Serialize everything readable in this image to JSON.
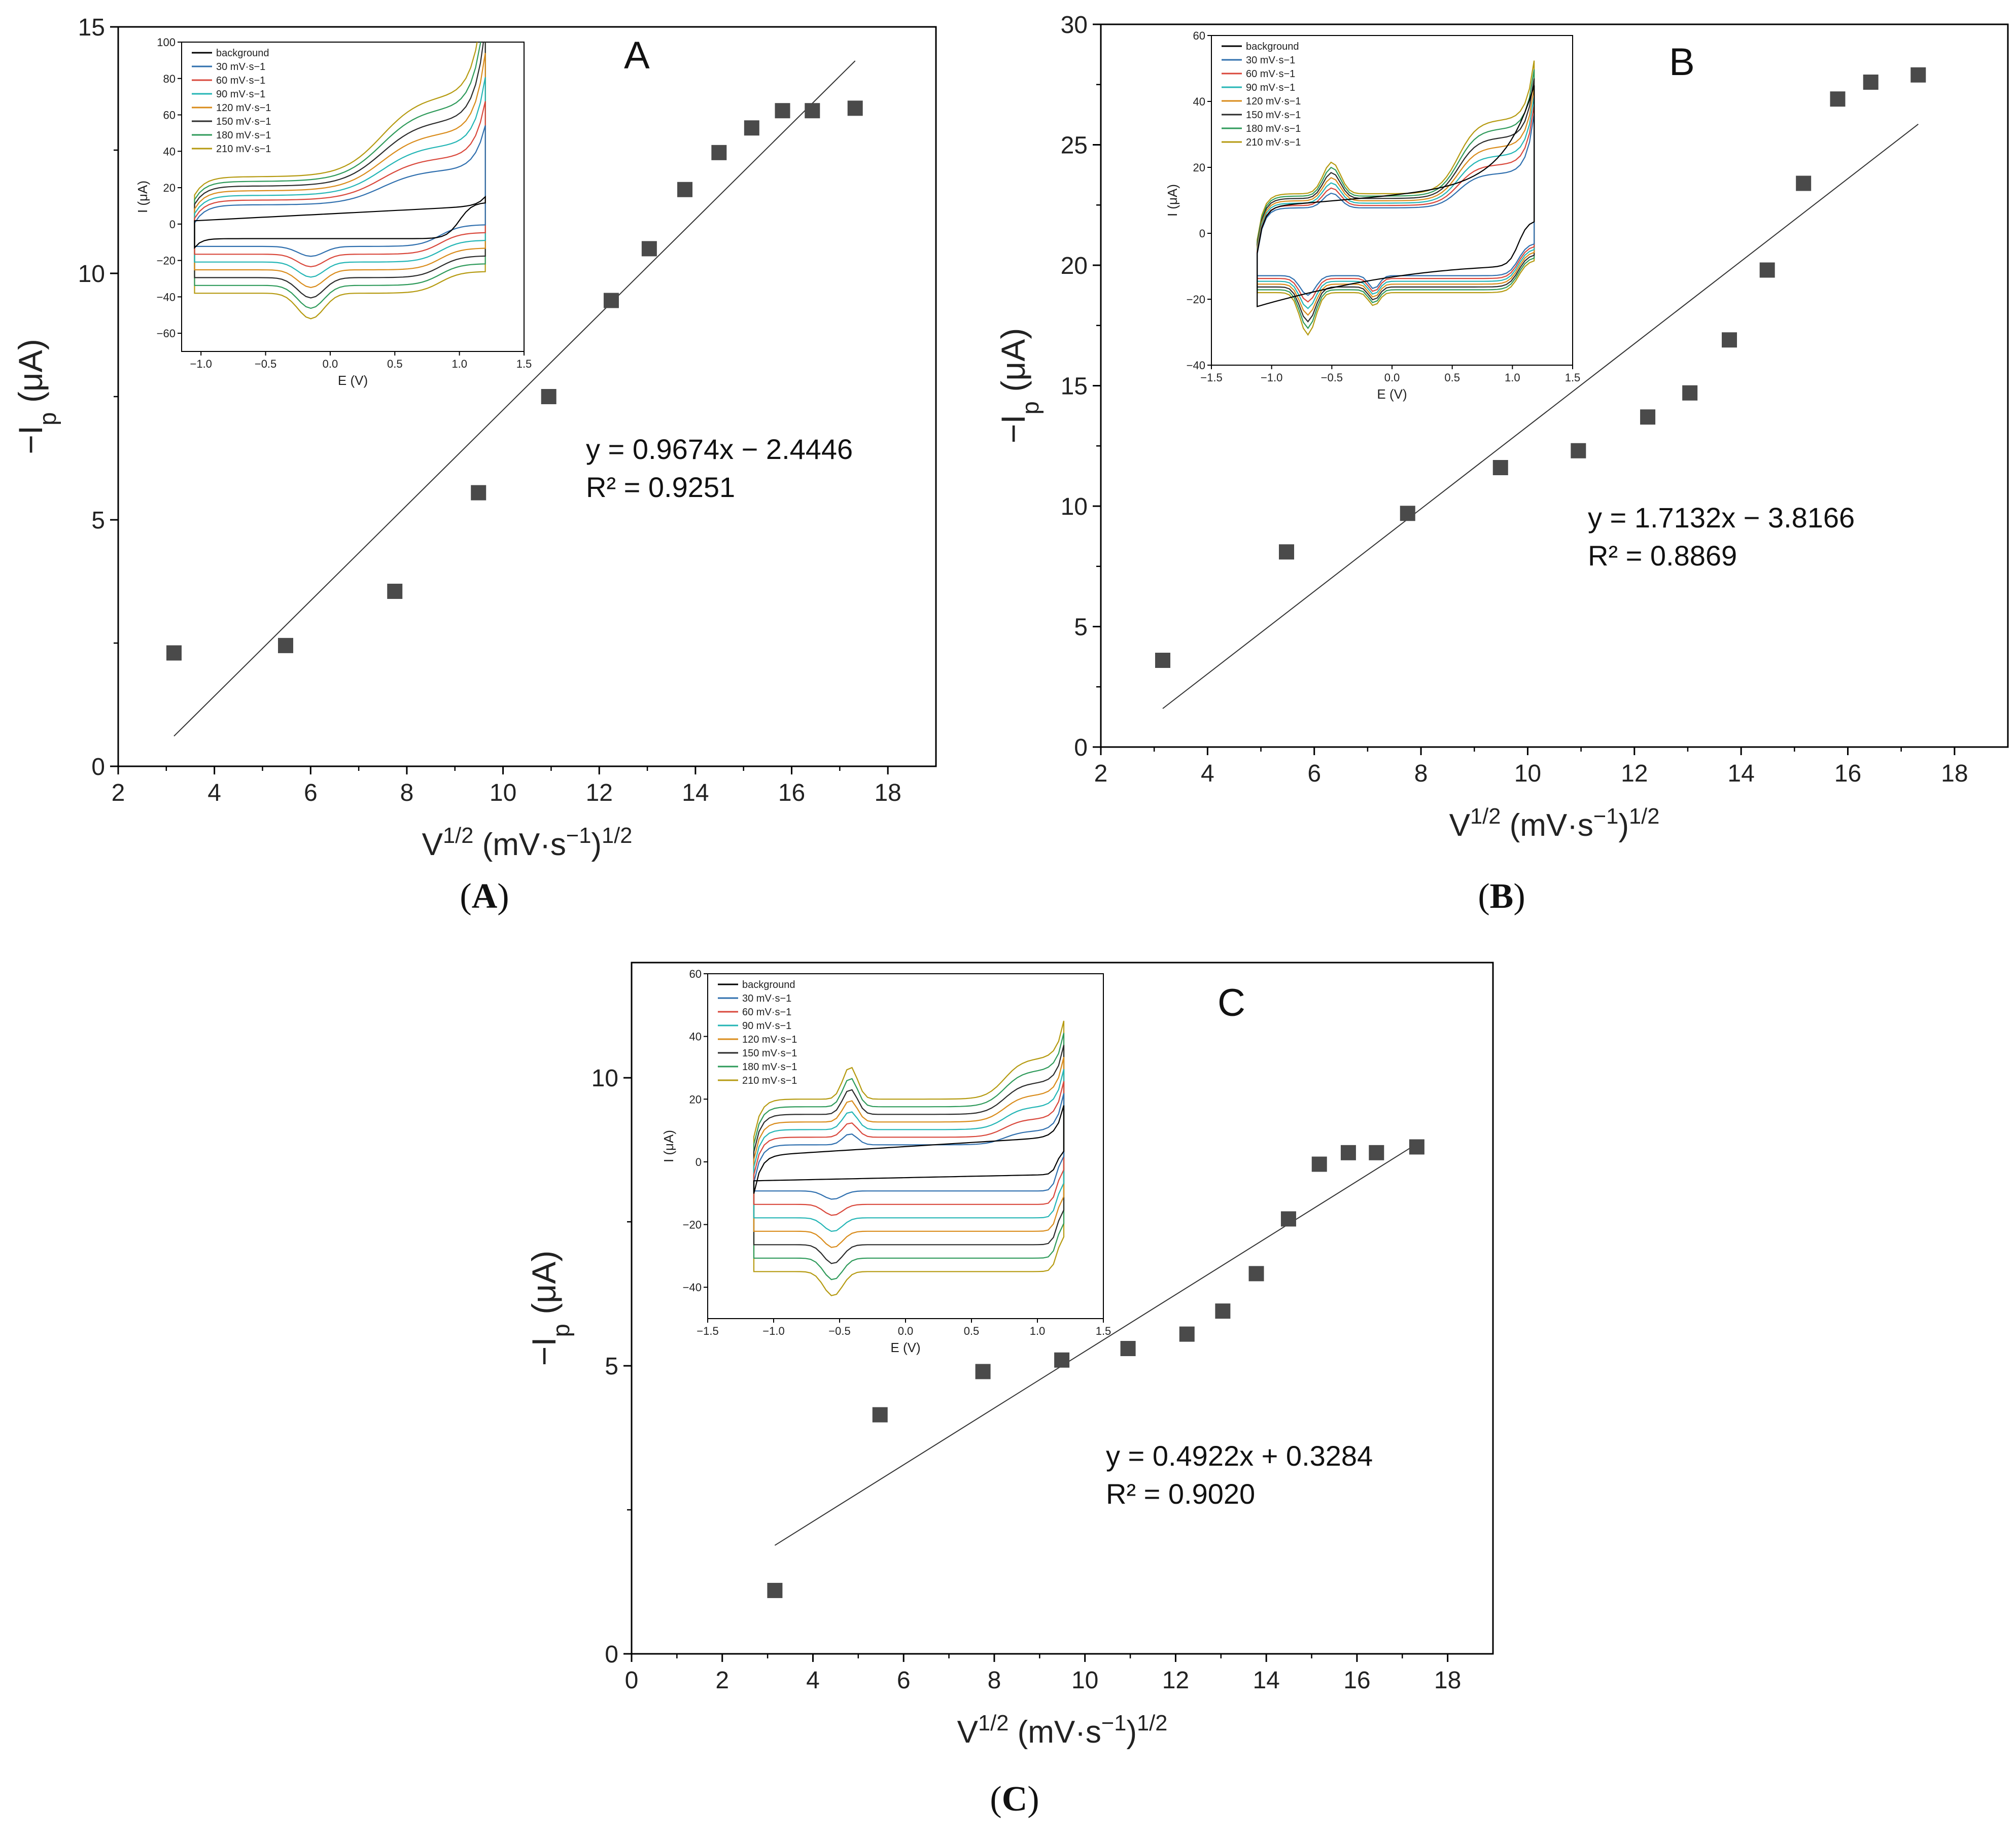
{
  "panel_captions": [
    "A",
    "B",
    "C"
  ],
  "colors": {
    "marker": "#4a4a4a",
    "fit_line": "#333333",
    "axis": "#000000",
    "background": "#000000",
    "cv_30": "#2f6fae",
    "cv_60": "#d9473b",
    "cv_90": "#23b5b5",
    "cv_120": "#d98b1a",
    "cv_150": "#2b2b2b",
    "cv_180": "#2e9a5a",
    "cv_210": "#b59a10"
  },
  "chart_data": [
    {
      "type": "scatter",
      "panel": "A",
      "label": "A",
      "xlabel": "V1/2 (mV·s−1)1/2",
      "ylabel": "−Ip (μA)",
      "xlim": [
        2,
        19
      ],
      "ylim": [
        0,
        15
      ],
      "xticks": [
        2,
        4,
        6,
        8,
        10,
        12,
        14,
        16,
        18
      ],
      "yticks": [
        0,
        5,
        10,
        15
      ],
      "x": [
        3.16,
        5.48,
        7.75,
        9.49,
        10.95,
        12.25,
        13.04,
        13.78,
        14.49,
        15.17,
        15.81,
        16.43,
        17.32
      ],
      "y": [
        2.3,
        2.45,
        3.55,
        5.55,
        7.5,
        9.45,
        10.5,
        11.7,
        12.45,
        12.95,
        13.3,
        13.3,
        13.35
      ],
      "fit": {
        "slope": 0.9674,
        "intercept": -2.4446,
        "x_range": [
          3.16,
          17.32
        ]
      },
      "equation": "y = 0.9674x − 2.4446",
      "r2": "R² = 0.9251",
      "grid": false,
      "inset": {
        "type": "line",
        "xlabel": "E (V)",
        "ylabel": "I (μA)",
        "xlim": [
          -1.15,
          1.5
        ],
        "ylim": [
          -70,
          100
        ],
        "xticks": [
          -1.0,
          -0.5,
          0.0,
          0.5,
          1.0,
          1.5
        ],
        "yticks": [
          -60,
          -40,
          -20,
          0,
          20,
          40,
          60,
          80,
          100
        ],
        "legend": [
          "background",
          "30  mV·s−1",
          "60  mV·s−1",
          "90  mV·s−1",
          "120  mV·s−1",
          "150  mV·s−1",
          "180  mV·s−1",
          "210  mV·s−1"
        ],
        "legend_position": "top-left"
      }
    },
    {
      "type": "scatter",
      "panel": "B",
      "label": "B",
      "xlabel": "V1/2 (mV·s−1)1/2",
      "ylabel": "−Ip (μA)",
      "xlim": [
        2,
        19
      ],
      "ylim": [
        0,
        30
      ],
      "xticks": [
        2,
        4,
        6,
        8,
        10,
        12,
        14,
        16,
        18
      ],
      "yticks": [
        0,
        5,
        10,
        15,
        20,
        25,
        30
      ],
      "x": [
        3.16,
        5.48,
        7.75,
        9.49,
        10.95,
        12.25,
        13.04,
        13.78,
        14.49,
        15.17,
        15.81,
        16.43,
        17.32
      ],
      "y": [
        3.6,
        8.1,
        9.7,
        11.6,
        12.3,
        13.7,
        14.7,
        16.9,
        19.8,
        23.4,
        26.9,
        27.6,
        27.9
      ],
      "fit": {
        "slope": 1.7132,
        "intercept": -3.8166,
        "x_range": [
          3.16,
          17.32
        ]
      },
      "equation": "y = 1.7132x − 3.8166",
      "r2": "R² = 0.8869",
      "grid": false,
      "inset": {
        "type": "line",
        "xlabel": "E (V)",
        "ylabel": "I (μA)",
        "xlim": [
          -1.5,
          1.5
        ],
        "ylim": [
          -40,
          60
        ],
        "xticks": [
          -1.5,
          -1.0,
          -0.5,
          0.0,
          0.5,
          1.0,
          1.5
        ],
        "yticks": [
          -40,
          -20,
          0,
          20,
          40,
          60
        ],
        "legend": [
          "background",
          "30  mV·s−1",
          "60  mV·s−1",
          "90  mV·s−1",
          "120  mV·s−1",
          "150  mV·s−1",
          "180  mV·s−1",
          "210  mV·s−1"
        ],
        "legend_position": "top-left"
      }
    },
    {
      "type": "scatter",
      "panel": "C",
      "label": "C",
      "xlabel": "V1/2 (mV·s−1)1/2",
      "ylabel": "−Ip (μA)",
      "xlim": [
        0,
        19
      ],
      "ylim": [
        0,
        12
      ],
      "xticks": [
        0,
        2,
        4,
        6,
        8,
        10,
        12,
        14,
        16,
        18
      ],
      "yticks": [
        0,
        5,
        10
      ],
      "x": [
        3.16,
        5.48,
        7.75,
        9.49,
        10.95,
        12.25,
        13.04,
        13.78,
        14.49,
        15.17,
        15.81,
        16.43,
        17.32
      ],
      "y": [
        1.1,
        4.15,
        4.9,
        5.1,
        5.3,
        5.55,
        5.95,
        6.6,
        7.55,
        8.5,
        8.7,
        8.7,
        8.8
      ],
      "fit": {
        "slope": 0.4922,
        "intercept": 0.3284,
        "x_range": [
          3.16,
          17.32
        ]
      },
      "equation": "y = 0.4922x + 0.3284",
      "r2": "R² = 0.9020",
      "grid": false,
      "inset": {
        "type": "line",
        "xlabel": "E (V)",
        "ylabel": "I (μA)",
        "xlim": [
          -1.5,
          1.5
        ],
        "ylim": [
          -50,
          60
        ],
        "xticks": [
          -1.5,
          -1.0,
          -0.5,
          0.0,
          0.5,
          1.0,
          1.5
        ],
        "yticks": [
          -40,
          -20,
          0,
          20,
          40,
          60
        ],
        "legend": [
          "background",
          "30  mV·s−1",
          "60  mV·s−1",
          "90  mV·s−1",
          "120  mV·s−1",
          "150  mV·s−1",
          "180  mV·s−1",
          "210  mV·s−1"
        ],
        "legend_position": "top-left"
      }
    }
  ]
}
